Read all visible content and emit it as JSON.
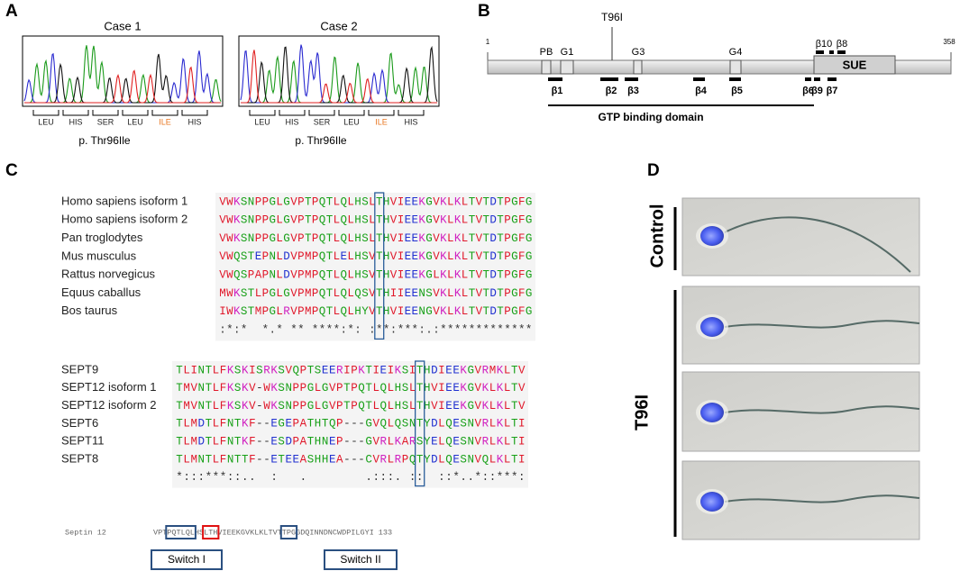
{
  "panel_labels": [
    "A",
    "B",
    "C",
    "D"
  ],
  "panel_a": {
    "cases": [
      {
        "title": "Case 1",
        "codons": [
          "LEU",
          "HIS",
          "SER",
          "LEU",
          "ILE",
          "HIS"
        ],
        "mutation": "p.  Thr96Ile"
      },
      {
        "title": "Case 2",
        "codons": [
          "LEU",
          "HIS",
          "SER",
          "LEU",
          "ILE",
          "HIS"
        ],
        "mutation": "p.  Thr96Ile"
      }
    ]
  },
  "panel_b": {
    "start": "1",
    "end": "358",
    "mutation": "T96I",
    "motifs": [
      "PB",
      "G1",
      "G3",
      "G4"
    ],
    "top_strands": [
      "β10",
      "β8"
    ],
    "domain": "SUE",
    "strands": [
      "β1",
      "β2",
      "β3",
      "β4",
      "β5",
      "β6",
      "β9",
      "β7"
    ],
    "domain_label": "GTP binding domain"
  },
  "panel_c": {
    "alignment_1": {
      "rows": [
        {
          "name": "Homo sapiens isoform 1",
          "sequence": "VWKSNPPGLGVPTPQTLQLHSLTHVIEEKGVKLKLTVTDTPGFG"
        },
        {
          "name": "Homo sapiens isoform 2",
          "sequence": "VWKSNPPGLGVPTPQTLQLHSLTHVIEEKGVKLKLTVTDTPGFG"
        },
        {
          "name": "Pan troglodytes",
          "sequence": "VWKSNPPGLGVPTPQTLQLHSLTHVIEEKGVKLKLTVTDTPGFG"
        },
        {
          "name": "Mus musculus",
          "sequence": "VWQSTEPNLDVPMPQTLELHSVTHVIEEKGVKLKLTVTDTPGFG"
        },
        {
          "name": "Rattus norvegicus",
          "sequence": "VWQSPAPNLDVPMPQTLQLHSVTHVIEEKGLKLKLTVTDTPGFG"
        },
        {
          "name": "Equus caballus",
          "sequence": "MWKSTLPGLGVPMPQTLQLQSVTHIIEENSVKLKLTVTDTPGFG"
        },
        {
          "name": "Bos taurus",
          "sequence": "IWKSTMPGLRVPMPQTLQLHYVTHVIEENGVKLKLTVTDTPGFG"
        }
      ],
      "consensus": ":*:*  *.* ** ****:*: :**:***:.:*************"
    },
    "alignment_2": {
      "rows": [
        {
          "name": "SEPT9",
          "sequence": "TLINTLFKSKISRKSVQPTSEERIPKTIEIKSITHDIEEKGVRMKLTV"
        },
        {
          "name": "SEPT12 isoform 1",
          "sequence": "TMVNTLFKSKV-WKSNPPGLGVPTPQTLQLHSLTHVIEEKGVKLKLTV"
        },
        {
          "name": "SEPT12 isoform 2",
          "sequence": "TMVNTLFKSKV-WKSNPPGLGVPTPQTLQLHSLTHVIEEKGVKLKLTV"
        },
        {
          "name": "SEPT6",
          "sequence": "TLMDTLFNTKF--EGEPATHTQP---GVQLQSNTYDLQESNVRLKLTI"
        },
        {
          "name": "SEPT11",
          "sequence": "TLMDTLFNTKF--ESDPATHNEP---GVRLKARSYELQESNVRLKLTI"
        },
        {
          "name": "SEPT8",
          "sequence": "TLMNTLFNTTF--ETEEASHHEA---CVRLRPQTYDLQESNVQLKLTI"
        }
      ],
      "consensus": "*:::***::..  :   .        .:::. ::  ::*..*::***:"
    },
    "septin_line": {
      "name": "Septin 12",
      "sequence": "VPTPQTLQLHSLTHVIEEKGVKLKLTVTTPGGDQINNDNCWDPILGYI",
      "end": "133"
    },
    "switches": [
      "Switch I",
      "Switch II"
    ]
  },
  "panel_d": {
    "groups": [
      "Control",
      "T96I"
    ]
  }
}
